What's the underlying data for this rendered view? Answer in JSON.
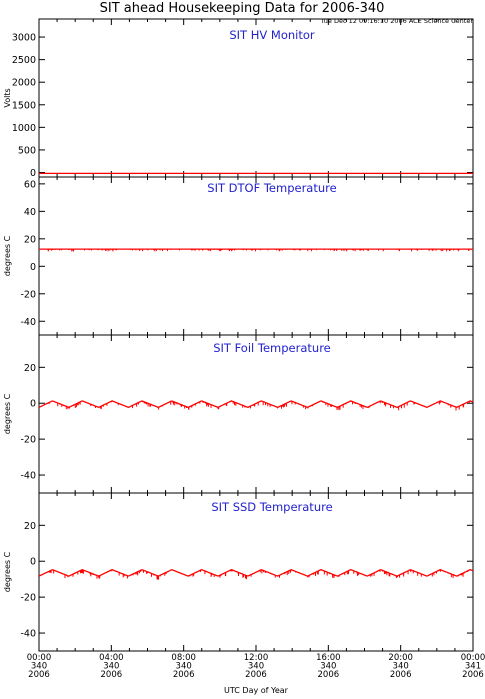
{
  "header": {
    "title": "SIT ahead Housekeeping Data for 2006-340",
    "timestamp": "Tue Dec 12 09:16:10 2006 ACE Science Center"
  },
  "colors": {
    "trace": "#ff0000",
    "panel_title": "#2222cc",
    "axes": "#000000"
  },
  "chart_data": [
    {
      "type": "line",
      "title": "SIT HV Monitor",
      "ylabel": "Volts",
      "ylim": [
        -100,
        3400
      ],
      "yticks": [
        0,
        500,
        1000,
        1500,
        2000,
        2500,
        3000
      ],
      "series": [
        {
          "pattern": "flat",
          "base": -20,
          "amp": 0,
          "noise": 0
        }
      ]
    },
    {
      "type": "line",
      "title": "SIT DTOF Temperature",
      "ylabel": "degrees C",
      "ylim": [
        -50,
        65
      ],
      "yticks": [
        -40,
        -20,
        0,
        20,
        40,
        60
      ],
      "series": [
        {
          "pattern": "flat",
          "base": 12.5,
          "amp": 0,
          "noise": 1.2
        }
      ]
    },
    {
      "type": "line",
      "title": "SIT Foil Temperature",
      "ylabel": "degrees C",
      "ylim": [
        -50,
        38
      ],
      "yticks": [
        -40,
        -20,
        0,
        20
      ],
      "series": [
        {
          "pattern": "sawtooth",
          "base": -0.5,
          "amp": 1.8,
          "noise": 1.5,
          "period_hours": 1.65
        }
      ]
    },
    {
      "type": "line",
      "title": "SIT SSD Temperature",
      "ylabel": "degrees C",
      "ylim": [
        -50,
        38
      ],
      "yticks": [
        -40,
        -20,
        0,
        20
      ],
      "series": [
        {
          "pattern": "sawtooth",
          "base": -6.5,
          "amp": 1.8,
          "noise": 1.5,
          "period_hours": 1.65
        }
      ]
    }
  ],
  "x_axis": {
    "label": "UTC Day of Year",
    "range_hours": [
      0,
      24
    ],
    "minor_tick_hours": 1,
    "ticks": [
      {
        "hour": 0,
        "time": "00:00",
        "day": "340",
        "year": "2006"
      },
      {
        "hour": 4,
        "time": "04:00",
        "day": "340",
        "year": "2006"
      },
      {
        "hour": 8,
        "time": "08:00",
        "day": "340",
        "year": "2006"
      },
      {
        "hour": 12,
        "time": "12:00",
        "day": "340",
        "year": "2006"
      },
      {
        "hour": 16,
        "time": "16:00",
        "day": "340",
        "year": "2006"
      },
      {
        "hour": 20,
        "time": "20:00",
        "day": "340",
        "year": "2006"
      },
      {
        "hour": 24,
        "time": "00:00",
        "day": "341",
        "year": "2006"
      }
    ]
  }
}
